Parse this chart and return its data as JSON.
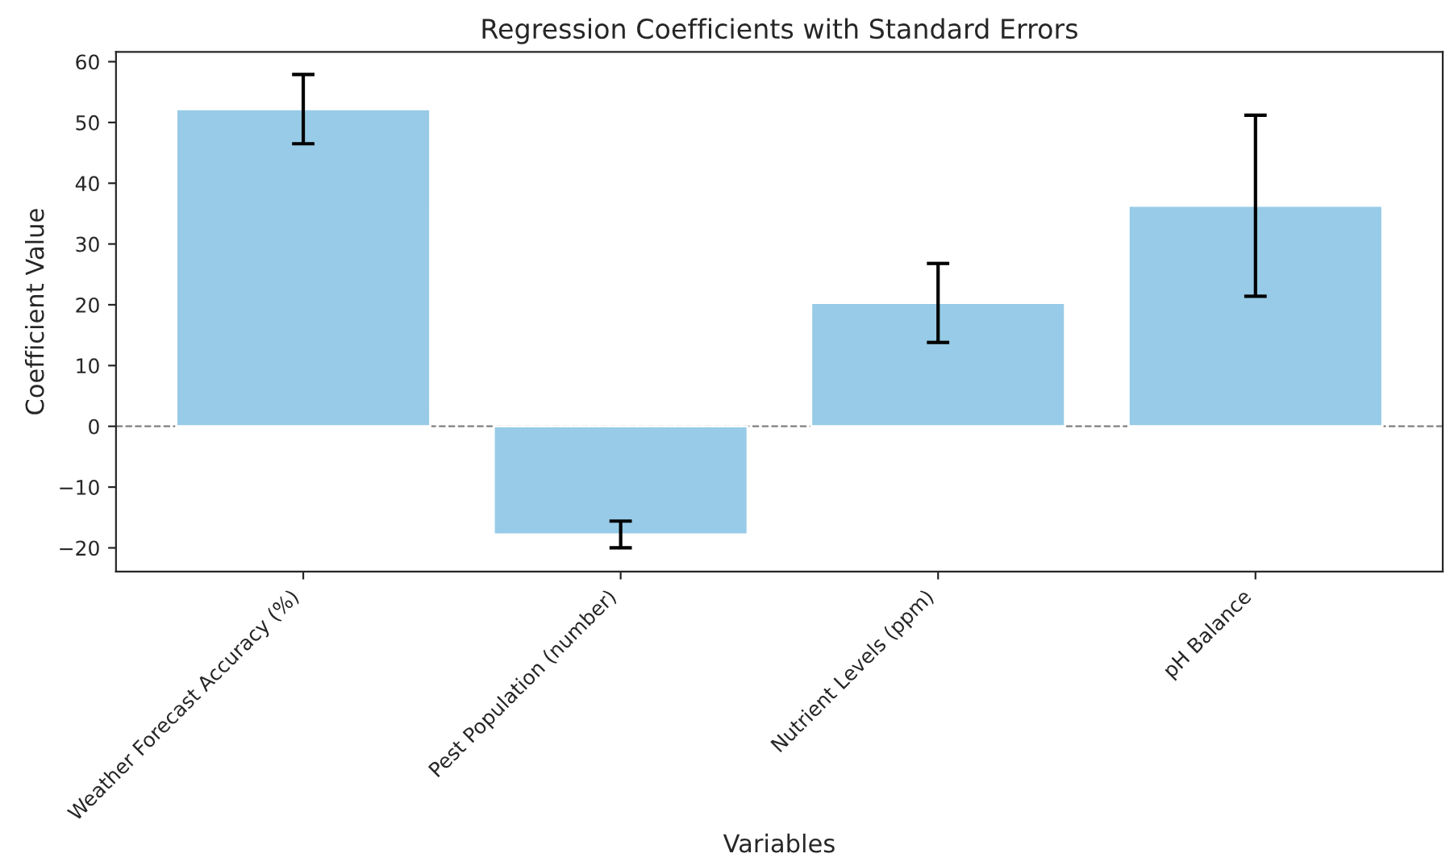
{
  "chart_data": {
    "type": "bar",
    "title": "Regression Coefficients with Standard Errors",
    "xlabel": "Variables",
    "ylabel": "Coefficient Value",
    "categories": [
      "Weather Forecast Accuracy (%)",
      "Pest Population (number)",
      "Nutrient Levels (ppm)",
      "pH Balance"
    ],
    "values": [
      52.2,
      -17.8,
      20.3,
      36.3
    ],
    "errors": [
      5.7,
      2.2,
      6.5,
      14.9
    ],
    "color": "#97cbe7",
    "ylim": [
      -23.9,
      61.6
    ],
    "yticks": [
      {
        "value": -20,
        "label": "−20"
      },
      {
        "value": -10,
        "label": "−10"
      },
      0,
      10,
      20,
      30,
      40,
      50,
      60
    ],
    "ref_lines": [
      {
        "axis": "y",
        "value": 0,
        "label": null,
        "color": "#808080",
        "line_style": "dashed"
      }
    ],
    "grid": false
  }
}
